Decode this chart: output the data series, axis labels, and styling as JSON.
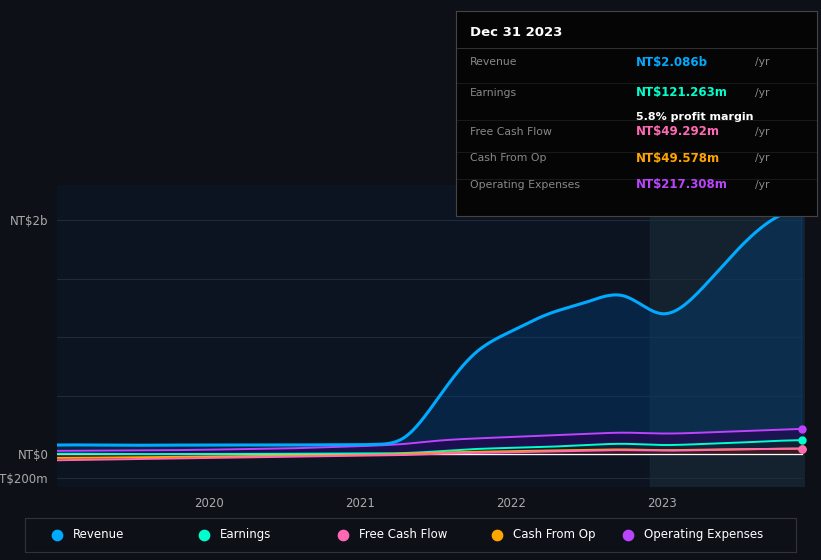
{
  "bg_color": "#0d1117",
  "plot_bg_color": "#0d1421",
  "tooltip": {
    "date": "Dec 31 2023",
    "revenue_label": "Revenue",
    "revenue_value": "NT$2.086b",
    "revenue_color": "#00aaff",
    "earnings_label": "Earnings",
    "earnings_value": "NT$121.263m",
    "earnings_color": "#00ffcc",
    "profit_margin": "5.8% profit margin",
    "fcf_label": "Free Cash Flow",
    "fcf_value": "NT$49.292m",
    "fcf_color": "#ff69b4",
    "cashop_label": "Cash From Op",
    "cashop_value": "NT$49.578m",
    "cashop_color": "#ffa500",
    "opex_label": "Operating Expenses",
    "opex_value": "NT$217.308m",
    "opex_color": "#bb44ff"
  },
  "legend": [
    {
      "label": "Revenue",
      "color": "#00aaff"
    },
    {
      "label": "Earnings",
      "color": "#00ffcc"
    },
    {
      "label": "Free Cash Flow",
      "color": "#ff69b4"
    },
    {
      "label": "Cash From Op",
      "color": "#ffa500"
    },
    {
      "label": "Operating Expenses",
      "color": "#bb44ff"
    }
  ],
  "series": {
    "x_raw": [
      2019.0,
      2019.25,
      2019.5,
      2019.75,
      2020.0,
      2020.25,
      2020.5,
      2020.75,
      2021.0,
      2021.1,
      2021.3,
      2021.5,
      2021.75,
      2022.0,
      2022.25,
      2022.5,
      2022.75,
      2023.0,
      2023.25,
      2023.5,
      2023.75,
      2023.92
    ],
    "revenue": [
      80,
      80,
      78,
      79,
      80,
      80,
      80,
      81,
      82,
      85,
      150,
      450,
      850,
      1050,
      1200,
      1300,
      1350,
      1200,
      1400,
      1750,
      2020,
      2086
    ],
    "earnings": [
      5,
      5,
      3,
      3,
      4,
      4,
      5,
      6,
      7,
      8,
      12,
      25,
      45,
      55,
      65,
      80,
      90,
      80,
      88,
      100,
      115,
      121
    ],
    "fcf": [
      -50,
      -45,
      -40,
      -35,
      -30,
      -25,
      -20,
      -15,
      -10,
      -8,
      -5,
      5,
      12,
      18,
      25,
      32,
      36,
      32,
      36,
      42,
      48,
      49
    ],
    "cashop": [
      -30,
      -28,
      -25,
      -22,
      -18,
      -15,
      -12,
      -8,
      -5,
      -3,
      5,
      15,
      22,
      28,
      33,
      38,
      42,
      36,
      40,
      44,
      48,
      49.5
    ],
    "opex": [
      30,
      32,
      34,
      36,
      40,
      45,
      50,
      60,
      70,
      75,
      90,
      115,
      135,
      148,
      162,
      175,
      185,
      178,
      185,
      198,
      210,
      217
    ]
  }
}
